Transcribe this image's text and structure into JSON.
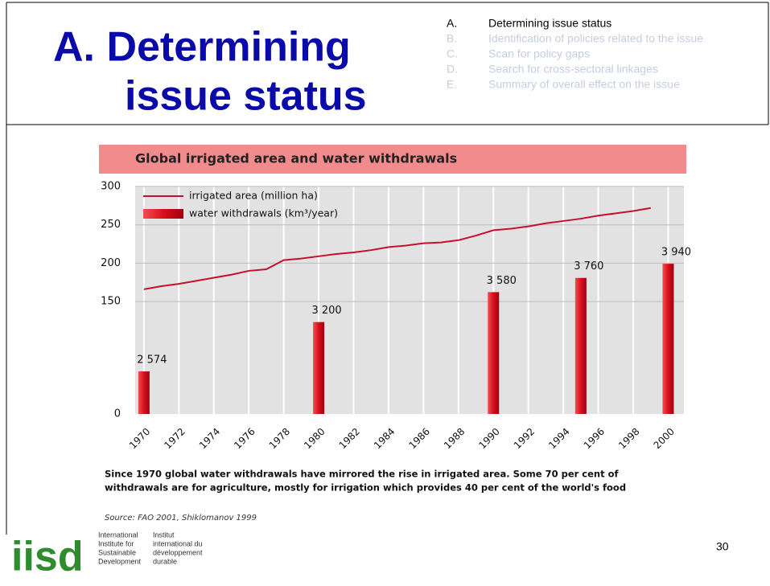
{
  "slide": {
    "title_lines": [
      "A.  Determining",
      "issue status"
    ],
    "agenda": [
      {
        "letter": "A.",
        "text": "Determining issue status"
      },
      {
        "letter": "B.",
        "text": "Identification of policies related to the issue"
      },
      {
        "letter": "C.",
        "text": "Scan for policy gaps"
      },
      {
        "letter": "D.",
        "text": "Search for cross-sectoral linkages"
      },
      {
        "letter": "E.",
        "text": "Summary of overall effect on the issue"
      }
    ],
    "caption_lines": [
      "Since 1970 global water withdrawals have mirrored the rise in irrigated area. Some 70 per cent of",
      "withdrawals are for agriculture, mostly for irrigation which provides 40 per cent of the world's food"
    ],
    "source": "Source: FAO 2001, Shiklomanov 1999",
    "logo": {
      "mark": "iisd",
      "english": [
        "International",
        "Institute for",
        "Sustainable",
        "Development"
      ],
      "french": [
        "Institut",
        "international du",
        "développement",
        "durable"
      ]
    },
    "page_number": "30"
  },
  "chart_data": {
    "type": "line",
    "title": "Global irrigated area and water withdrawals",
    "x": [
      1970,
      1971,
      1972,
      1973,
      1974,
      1975,
      1976,
      1977,
      1978,
      1979,
      1980,
      1981,
      1982,
      1983,
      1984,
      1985,
      1986,
      1987,
      1988,
      1989,
      1990,
      1991,
      1992,
      1993,
      1994,
      1995,
      1996,
      1997,
      1998,
      1999
    ],
    "series": [
      {
        "name": "irrigated area (million ha)",
        "color": "#c8102e",
        "type": "line",
        "values": [
          166,
          170,
          173,
          177,
          181,
          185,
          190,
          192,
          204,
          206,
          209,
          212,
          214,
          217,
          221,
          223,
          226,
          227,
          230,
          236,
          243,
          245,
          248,
          252,
          255,
          258,
          262,
          265,
          268,
          272
        ]
      },
      {
        "name": "water withdrawals (km³/year)",
        "color": "#d80f1c",
        "type": "bar",
        "axis": "y2",
        "x": [
          1970,
          1980,
          1990,
          1995,
          2000
        ],
        "values": [
          2574,
          3200,
          3580,
          3760,
          3940
        ],
        "value_labels": [
          "2 574",
          "3 200",
          "3 580",
          "3 760",
          "3 940"
        ]
      }
    ],
    "xlim": [
      1969.5,
      2000.9
    ],
    "xticks": [
      1970,
      1972,
      1974,
      1976,
      1978,
      1980,
      1982,
      1984,
      1986,
      1988,
      1990,
      1992,
      1994,
      1996,
      1998,
      2000
    ],
    "ylim": [
      0,
      300
    ],
    "yticks": [
      0,
      150,
      200,
      250,
      300
    ],
    "y2lim": [
      2034,
      4920
    ],
    "grid": true,
    "legend": "top-left"
  }
}
